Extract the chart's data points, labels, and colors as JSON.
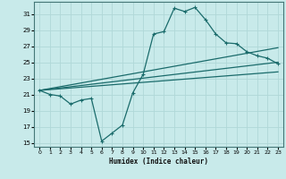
{
  "title": "",
  "xlabel": "Humidex (Indice chaleur)",
  "ylabel": "",
  "xlim": [
    -0.5,
    23.5
  ],
  "ylim": [
    14.5,
    32.5
  ],
  "yticks": [
    15,
    17,
    19,
    21,
    23,
    25,
    27,
    29,
    31
  ],
  "xticks": [
    0,
    1,
    2,
    3,
    4,
    5,
    6,
    7,
    8,
    9,
    10,
    11,
    12,
    13,
    14,
    15,
    16,
    17,
    18,
    19,
    20,
    21,
    22,
    23
  ],
  "background_color": "#c8eaea",
  "grid_color": "#b0d8d8",
  "line_color": "#1a6b6b",
  "curve1_x": [
    0,
    1,
    2,
    3,
    4,
    5,
    6,
    7,
    8,
    9,
    10,
    11,
    12,
    13,
    14,
    15,
    16,
    17,
    18,
    19,
    20,
    21,
    22,
    23
  ],
  "curve1_y": [
    21.5,
    21.0,
    20.8,
    19.8,
    20.3,
    20.5,
    15.2,
    16.2,
    17.2,
    21.2,
    23.5,
    28.5,
    28.8,
    31.7,
    31.3,
    31.8,
    30.3,
    28.5,
    27.4,
    27.3,
    26.3,
    25.8,
    25.5,
    24.8
  ],
  "curve2_x": [
    0,
    23
  ],
  "curve2_y": [
    21.5,
    26.8
  ],
  "curve3_x": [
    0,
    23
  ],
  "curve3_y": [
    21.5,
    25.0
  ],
  "curve4_x": [
    0,
    23
  ],
  "curve4_y": [
    21.5,
    23.8
  ]
}
